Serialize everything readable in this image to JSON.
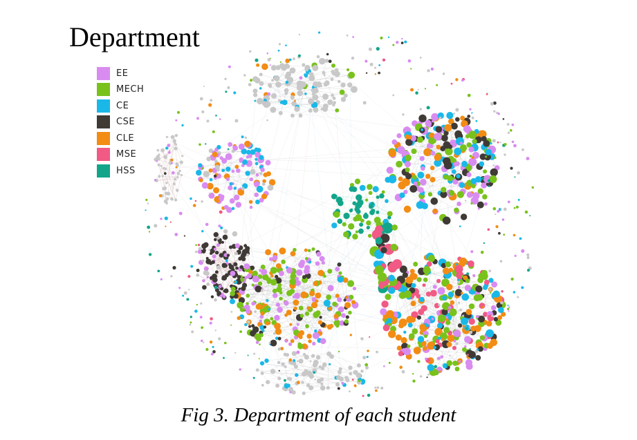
{
  "figure": {
    "title": "Department",
    "caption": "Fig 3. Department of each student"
  },
  "legend": [
    {
      "label": "EE",
      "color": "#d98cf0"
    },
    {
      "label": "MECH",
      "color": "#79c21c"
    },
    {
      "label": "CE",
      "color": "#1ab8e8"
    },
    {
      "label": "CSE",
      "color": "#3f3a36"
    },
    {
      "label": "CLE",
      "color": "#f28c14"
    },
    {
      "label": "MSE",
      "color": "#f05a84"
    },
    {
      "label": "HSS",
      "color": "#12a58a"
    }
  ],
  "palette": {
    "unassigned_node": "#c8c8c8",
    "edge_gray": "#bdbdbd",
    "edge_rose": "#c9a9a6"
  }
}
